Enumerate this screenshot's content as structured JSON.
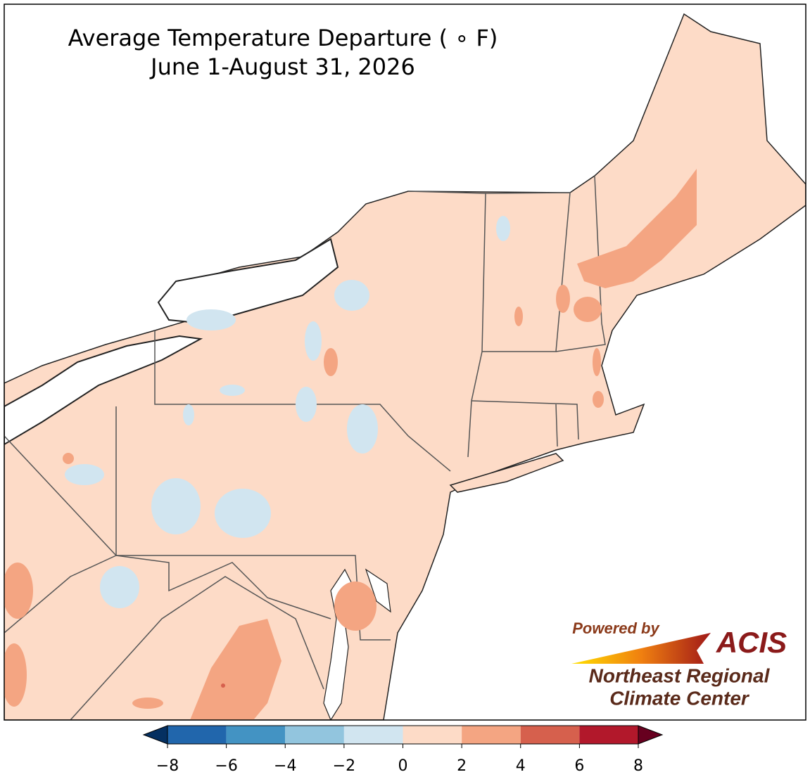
{
  "title": "Average Temperature Departure ( ∘ F)",
  "subtitle": "June 1-August 31, 2026",
  "colorbar": {
    "ticks": [
      {
        "value": -8,
        "label": "−8"
      },
      {
        "value": -6,
        "label": "−6"
      },
      {
        "value": -4,
        "label": "−4"
      },
      {
        "value": -2,
        "label": "−2"
      },
      0,
      2,
      4,
      6,
      8
    ],
    "colors": [
      "#2166ac",
      "#4393c3",
      "#92c5de",
      "#d1e5f0",
      "#fddbc7",
      "#f4a582",
      "#d6604d",
      "#b2182b"
    ],
    "under_color": "#053061",
    "over_color": "#67001f"
  },
  "credit": {
    "powered_by": "Powered by",
    "logo": "ACIS",
    "org_line1": "Northeast Regional",
    "org_line2": "Climate Center"
  }
}
